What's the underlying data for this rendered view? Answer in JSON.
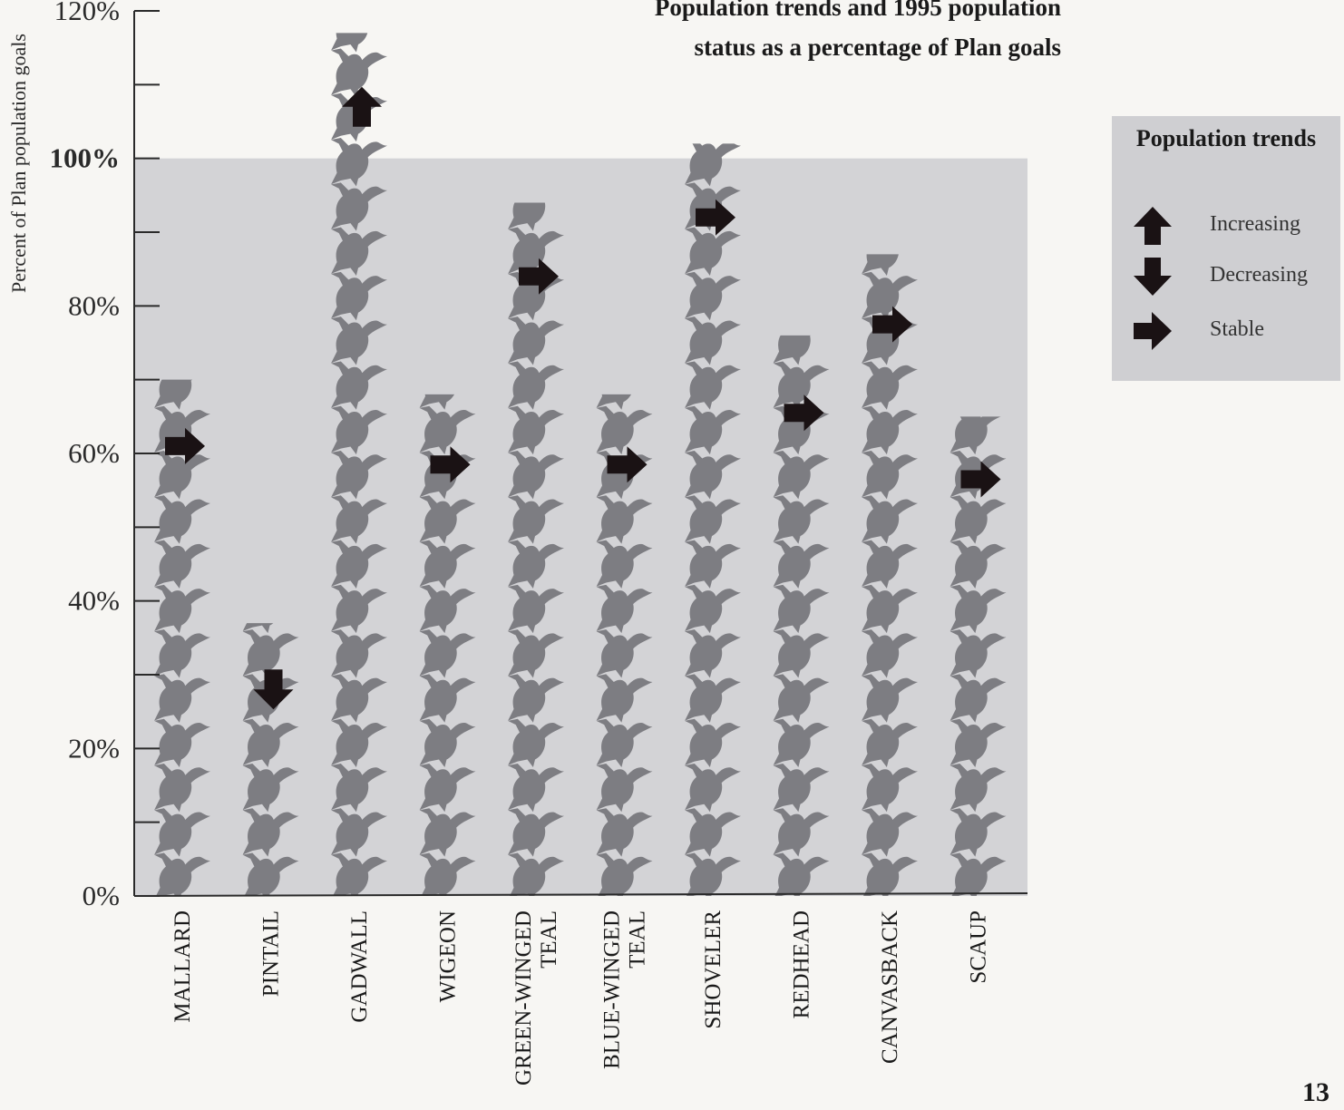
{
  "chart_data": {
    "type": "bar",
    "title_lines": [
      "Population trends and 1995 population",
      "status as a percentage of Plan goals"
    ],
    "ylabel": "Percent of Plan population goals",
    "ylim": [
      0,
      120
    ],
    "yticks": [
      {
        "value": 0,
        "label": "0%",
        "bold": false
      },
      {
        "value": 20,
        "label": "20%",
        "bold": false
      },
      {
        "value": 40,
        "label": "40%",
        "bold": false
      },
      {
        "value": 60,
        "label": "60%",
        "bold": false
      },
      {
        "value": 80,
        "label": "80%",
        "bold": false
      },
      {
        "value": 100,
        "label": "100%",
        "bold": true
      },
      {
        "value": 120,
        "label": "120%",
        "bold": false
      }
    ],
    "minor_ticks": [
      10,
      30,
      50,
      70,
      90,
      110
    ],
    "goal_band_max": 100,
    "categories": [
      {
        "lines": [
          "MALLARD"
        ],
        "value": 70,
        "trend": "stable",
        "arrow_at": 61
      },
      {
        "lines": [
          "PINTAIL"
        ],
        "value": 37,
        "trend": "decreasing",
        "arrow_at": 28
      },
      {
        "lines": [
          "GADWALL"
        ],
        "value": 117,
        "trend": "increasing",
        "arrow_at": 107
      },
      {
        "lines": [
          "WIGEON"
        ],
        "value": 68,
        "trend": "stable",
        "arrow_at": 58.5
      },
      {
        "lines": [
          "GREEN-WINGED",
          "TEAL"
        ],
        "value": 94,
        "trend": "stable",
        "arrow_at": 84
      },
      {
        "lines": [
          "BLUE-WINGED",
          "TEAL"
        ],
        "value": 68,
        "trend": "stable",
        "arrow_at": 58.5
      },
      {
        "lines": [
          "SHOVELER"
        ],
        "value": 102,
        "trend": "stable",
        "arrow_at": 92
      },
      {
        "lines": [
          "REDHEAD"
        ],
        "value": 76,
        "trend": "stable",
        "arrow_at": 65.5
      },
      {
        "lines": [
          "CANVASBACK"
        ],
        "value": 87,
        "trend": "stable",
        "arrow_at": 77.5
      },
      {
        "lines": [
          "SCAUP"
        ],
        "value": 65,
        "trend": "stable",
        "arrow_at": 56.5
      }
    ],
    "legend": {
      "title": "Population trends",
      "items": [
        {
          "trend": "increasing",
          "label": "Increasing"
        },
        {
          "trend": "decreasing",
          "label": "Decreasing"
        },
        {
          "trend": "stable",
          "label": "Stable"
        }
      ]
    },
    "colors": {
      "background": "#f7f6f3",
      "goal_band": "#d3d3d6",
      "duck": "#7d7d82",
      "arrow": "#1a1214",
      "axis": "#2a2a2a",
      "legend_bg": "#cfcfd2"
    }
  },
  "page_number": "13"
}
